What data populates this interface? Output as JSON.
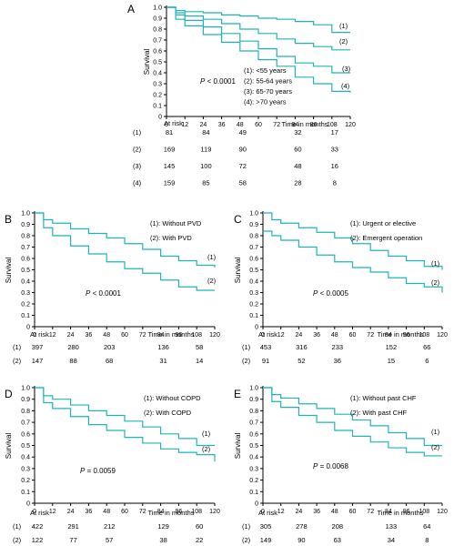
{
  "chart_data": [
    {
      "type": "line",
      "panel_label": "A",
      "ylabel": "Survival",
      "xlabel": "Time in months",
      "ylim": [
        0,
        1.0
      ],
      "xlim": [
        0,
        120
      ],
      "xticks": [
        0,
        12,
        24,
        36,
        48,
        60,
        72,
        84,
        96,
        108,
        120
      ],
      "yticks": [
        0,
        0.1,
        0.2,
        0.3,
        0.4,
        0.5,
        0.6,
        0.7,
        0.8,
        0.9,
        1.0
      ],
      "pvalue": {
        "prefix": "P",
        "rest": " < 0.0001"
      },
      "legend": [
        "(1): <55 years",
        "(2): 55-64 years",
        "(3): 65-70 years",
        "(4): >70 years"
      ],
      "series": [
        {
          "name": "(1)",
          "x": [
            0,
            6,
            12,
            24,
            36,
            48,
            60,
            72,
            84,
            96,
            108,
            120
          ],
          "y": [
            1.0,
            0.97,
            0.96,
            0.95,
            0.93,
            0.92,
            0.9,
            0.89,
            0.87,
            0.84,
            0.77,
            0.77
          ]
        },
        {
          "name": "(2)",
          "x": [
            0,
            6,
            12,
            24,
            36,
            48,
            60,
            72,
            84,
            96,
            108,
            120
          ],
          "y": [
            1.0,
            0.95,
            0.92,
            0.89,
            0.85,
            0.8,
            0.76,
            0.71,
            0.67,
            0.64,
            0.61,
            0.61
          ]
        },
        {
          "name": "(3)",
          "x": [
            0,
            6,
            12,
            24,
            36,
            48,
            60,
            72,
            84,
            96,
            108,
            120
          ],
          "y": [
            1.0,
            0.93,
            0.88,
            0.82,
            0.76,
            0.69,
            0.62,
            0.55,
            0.49,
            0.46,
            0.4,
            0.4
          ]
        },
        {
          "name": "(4)",
          "x": [
            0,
            6,
            12,
            24,
            36,
            48,
            60,
            72,
            84,
            96,
            108,
            120
          ],
          "y": [
            1.0,
            0.89,
            0.83,
            0.75,
            0.68,
            0.6,
            0.52,
            0.46,
            0.36,
            0.3,
            0.23,
            0.22
          ]
        }
      ],
      "at_risk": {
        "label": "At risk",
        "times": [
          0,
          24,
          48,
          84,
          108
        ],
        "rows": [
          {
            "label": "(1)",
            "values": [
              "81",
              "84",
              "49",
              "32",
              "17"
            ]
          },
          {
            "label": "(2)",
            "values": [
              "169",
              "119",
              "90",
              "60",
              "33"
            ]
          },
          {
            "label": "(3)",
            "values": [
              "145",
              "100",
              "72",
              "48",
              "16"
            ]
          },
          {
            "label": "(4)",
            "values": [
              "159",
              "85",
              "58",
              "28",
              "8"
            ]
          }
        ]
      }
    },
    {
      "type": "line",
      "panel_label": "B",
      "ylabel": "Survival",
      "xlabel": "Time in months",
      "ylim": [
        0,
        1.0
      ],
      "xlim": [
        0,
        120
      ],
      "xticks": [
        0,
        12,
        24,
        36,
        48,
        60,
        72,
        84,
        96,
        108,
        120
      ],
      "yticks": [
        0,
        0.1,
        0.2,
        0.3,
        0.4,
        0.5,
        0.6,
        0.7,
        0.8,
        0.9,
        1.0
      ],
      "pvalue": {
        "prefix": "P",
        "rest": " < 0.0001"
      },
      "legend": [
        "(1): Without PVD",
        "(2): With PVD"
      ],
      "series": [
        {
          "name": "(1)",
          "x": [
            0,
            6,
            12,
            24,
            36,
            48,
            60,
            72,
            84,
            96,
            108,
            120
          ],
          "y": [
            1.0,
            0.94,
            0.91,
            0.86,
            0.82,
            0.78,
            0.73,
            0.68,
            0.62,
            0.58,
            0.54,
            0.52
          ]
        },
        {
          "name": "(2)",
          "x": [
            0,
            6,
            12,
            24,
            36,
            48,
            60,
            72,
            84,
            96,
            108,
            120
          ],
          "y": [
            1.0,
            0.87,
            0.8,
            0.71,
            0.64,
            0.57,
            0.51,
            0.47,
            0.41,
            0.35,
            0.32,
            0.32
          ]
        }
      ],
      "at_risk": {
        "label": "At risk",
        "times": [
          0,
          24,
          48,
          84,
          108
        ],
        "rows": [
          {
            "label": "(1)",
            "values": [
              "397",
              "280",
              "203",
              "136",
              "58"
            ]
          },
          {
            "label": "(2)",
            "values": [
              "147",
              "88",
              "68",
              "31",
              "14"
            ]
          }
        ]
      }
    },
    {
      "type": "line",
      "panel_label": "C",
      "ylabel": "Survival",
      "xlabel": "Time in months",
      "ylim": [
        0,
        1.0
      ],
      "xlim": [
        0,
        120
      ],
      "xticks": [
        0,
        12,
        24,
        36,
        48,
        60,
        72,
        84,
        96,
        108,
        120
      ],
      "yticks": [
        0,
        0.1,
        0.2,
        0.3,
        0.4,
        0.5,
        0.6,
        0.7,
        0.8,
        0.9,
        1.0
      ],
      "pvalue": {
        "prefix": "P",
        "rest": " < 0.0005"
      },
      "legend": [
        "(1): Urgent or elective",
        "(2): Emergent operation"
      ],
      "series": [
        {
          "name": "(1)",
          "x": [
            0,
            6,
            12,
            24,
            36,
            48,
            60,
            72,
            84,
            96,
            108,
            120
          ],
          "y": [
            1.0,
            0.94,
            0.91,
            0.87,
            0.83,
            0.78,
            0.73,
            0.67,
            0.62,
            0.58,
            0.53,
            0.5
          ]
        },
        {
          "name": "(2)",
          "x": [
            0,
            6,
            12,
            24,
            36,
            48,
            60,
            72,
            84,
            96,
            108,
            120
          ],
          "y": [
            0.84,
            0.8,
            0.76,
            0.7,
            0.63,
            0.57,
            0.52,
            0.48,
            0.43,
            0.38,
            0.35,
            0.3
          ]
        }
      ],
      "at_risk": {
        "label": "At risk",
        "times": [
          0,
          24,
          48,
          84,
          108
        ],
        "rows": [
          {
            "label": "(1)",
            "values": [
              "453",
              "316",
              "233",
              "152",
              "66"
            ]
          },
          {
            "label": "(2)",
            "values": [
              "91",
              "52",
              "36",
              "15",
              "6"
            ]
          }
        ]
      }
    },
    {
      "type": "line",
      "panel_label": "D",
      "ylabel": "Survival",
      "xlabel": "Time in months",
      "ylim": [
        0,
        1.0
      ],
      "xlim": [
        0,
        120
      ],
      "xticks": [
        0,
        12,
        24,
        36,
        48,
        60,
        72,
        84,
        96,
        108,
        120
      ],
      "yticks": [
        0,
        0.1,
        0.2,
        0.3,
        0.4,
        0.5,
        0.6,
        0.7,
        0.8,
        0.9,
        1.0
      ],
      "pvalue": {
        "prefix": "P",
        "rest": " = 0.0059"
      },
      "legend": [
        "(1): Without COPD",
        "(2): With COPD"
      ],
      "series": [
        {
          "name": "(1)",
          "x": [
            0,
            6,
            12,
            24,
            36,
            48,
            60,
            72,
            84,
            96,
            108,
            120
          ],
          "y": [
            1.0,
            0.93,
            0.9,
            0.85,
            0.8,
            0.76,
            0.71,
            0.66,
            0.6,
            0.56,
            0.5,
            0.5
          ]
        },
        {
          "name": "(2)",
          "x": [
            0,
            6,
            12,
            24,
            36,
            48,
            60,
            72,
            84,
            96,
            108,
            120
          ],
          "y": [
            1.0,
            0.87,
            0.82,
            0.75,
            0.68,
            0.63,
            0.57,
            0.52,
            0.47,
            0.44,
            0.42,
            0.36
          ]
        }
      ],
      "at_risk": {
        "label": "At risk",
        "times": [
          0,
          24,
          48,
          84,
          108
        ],
        "rows": [
          {
            "label": "(1)",
            "values": [
              "422",
              "291",
              "212",
              "129",
              "60"
            ]
          },
          {
            "label": "(2)",
            "values": [
              "122",
              "77",
              "57",
              "38",
              "22"
            ]
          }
        ]
      }
    },
    {
      "type": "line",
      "panel_label": "E",
      "ylabel": "Survival",
      "xlabel": "Time in months",
      "ylim": [
        0,
        1.0
      ],
      "xlim": [
        0,
        120
      ],
      "xticks": [
        0,
        12,
        24,
        36,
        48,
        60,
        72,
        84,
        96,
        108,
        120
      ],
      "yticks": [
        0,
        0.1,
        0.2,
        0.3,
        0.4,
        0.5,
        0.6,
        0.7,
        0.8,
        0.9,
        1.0
      ],
      "pvalue": {
        "prefix": "P",
        "rest": " = 0.0068"
      },
      "legend": [
        "(1): Without past CHF",
        "(2): With past CHF"
      ],
      "series": [
        {
          "name": "(1)",
          "x": [
            0,
            6,
            12,
            24,
            36,
            48,
            60,
            72,
            84,
            96,
            108,
            120
          ],
          "y": [
            1.0,
            0.94,
            0.91,
            0.86,
            0.82,
            0.77,
            0.72,
            0.67,
            0.61,
            0.56,
            0.5,
            0.5
          ]
        },
        {
          "name": "(2)",
          "x": [
            0,
            6,
            12,
            24,
            36,
            48,
            60,
            72,
            84,
            96,
            108,
            120
          ],
          "y": [
            1.0,
            0.88,
            0.83,
            0.76,
            0.7,
            0.63,
            0.58,
            0.53,
            0.48,
            0.44,
            0.41,
            0.41
          ]
        }
      ],
      "at_risk": {
        "label": "At risk",
        "times": [
          0,
          24,
          48,
          84,
          108
        ],
        "rows": [
          {
            "label": "(1)",
            "values": [
              "305",
              "278",
              "208",
              "133",
              "64"
            ]
          },
          {
            "label": "(2)",
            "values": [
              "149",
              "90",
              "63",
              "34",
              "8"
            ]
          }
        ]
      }
    }
  ],
  "colors": {
    "curve": "#1fb5b8",
    "axis": "#000000"
  }
}
